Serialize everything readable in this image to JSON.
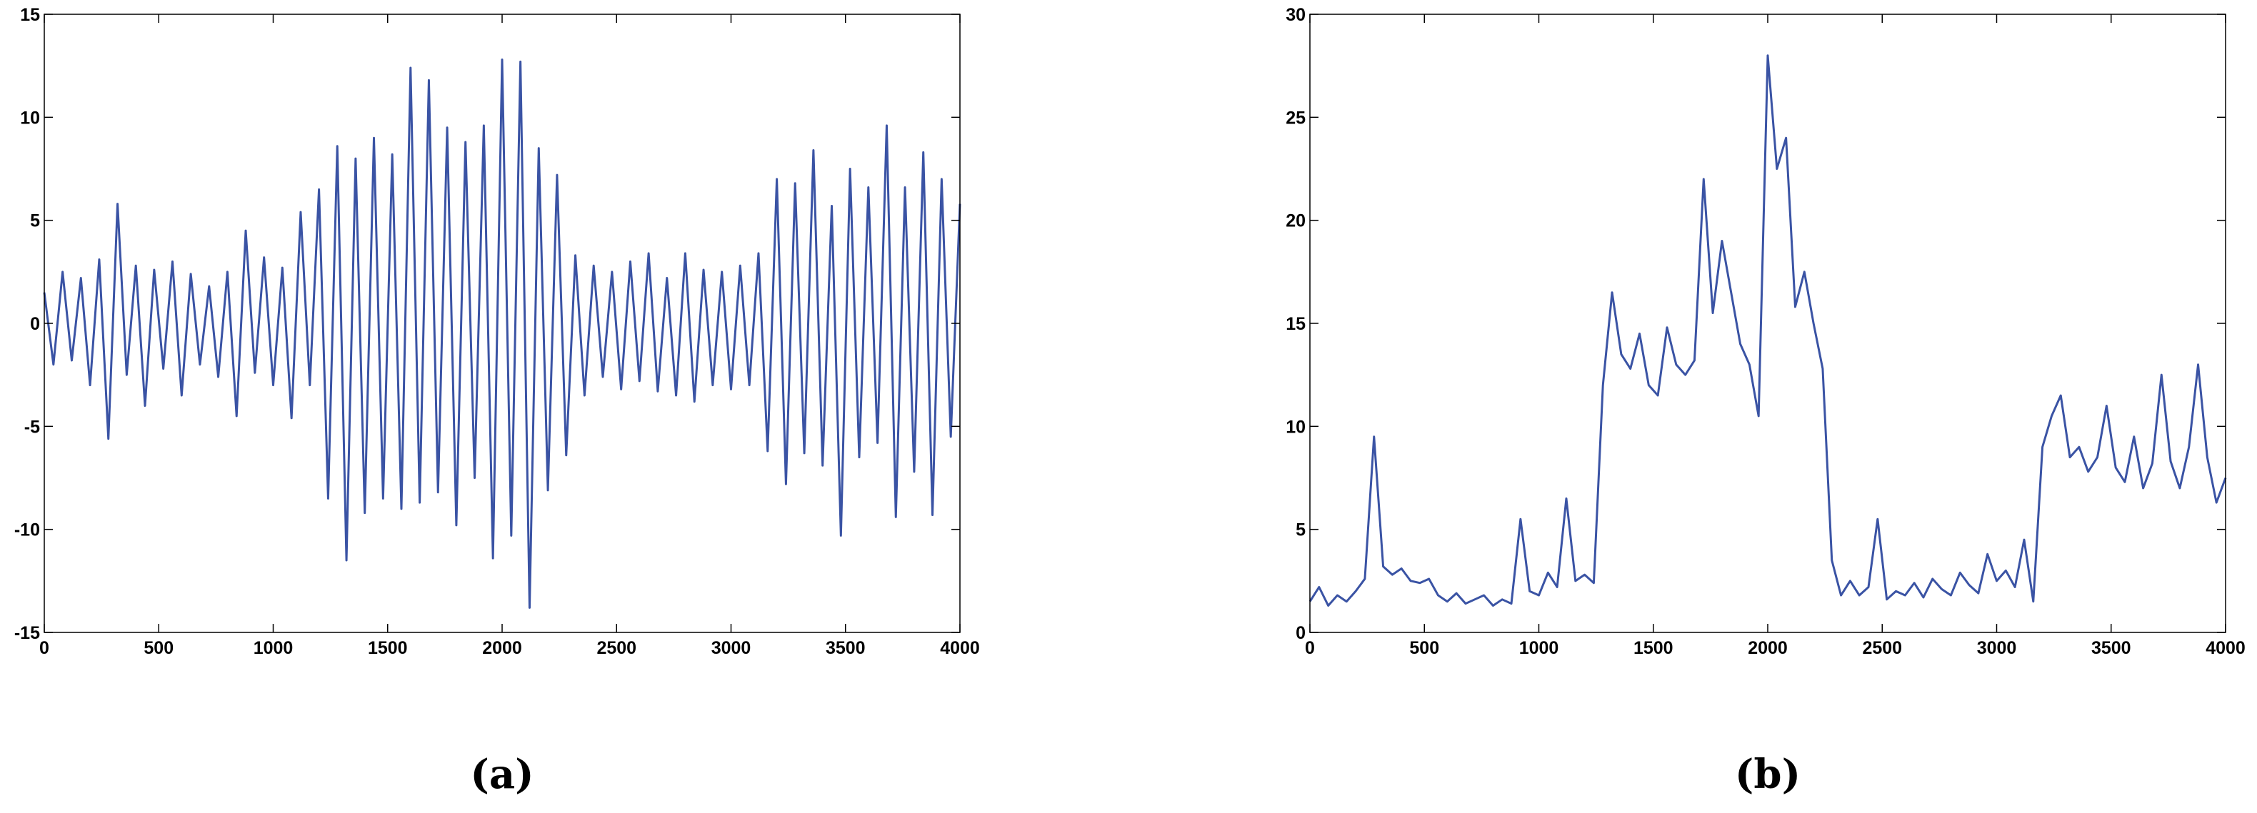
{
  "chart_data": [
    {
      "type": "line",
      "caption": "(a)",
      "x": [
        0,
        40,
        80,
        120,
        160,
        200,
        240,
        280,
        320,
        360,
        400,
        440,
        480,
        520,
        560,
        600,
        640,
        680,
        720,
        760,
        800,
        840,
        880,
        920,
        960,
        1000,
        1040,
        1080,
        1120,
        1160,
        1200,
        1240,
        1280,
        1320,
        1360,
        1400,
        1440,
        1480,
        1520,
        1560,
        1600,
        1640,
        1680,
        1720,
        1760,
        1800,
        1840,
        1880,
        1920,
        1960,
        2000,
        2040,
        2080,
        2120,
        2160,
        2200,
        2240,
        2280,
        2320,
        2360,
        2400,
        2440,
        2480,
        2520,
        2560,
        2600,
        2640,
        2680,
        2720,
        2760,
        2800,
        2840,
        2880,
        2920,
        2960,
        3000,
        3040,
        3080,
        3120,
        3160,
        3200,
        3240,
        3280,
        3320,
        3360,
        3400,
        3440,
        3480,
        3520,
        3560,
        3600,
        3640,
        3680,
        3720,
        3760,
        3800,
        3840,
        3880,
        3920,
        3960,
        4000
      ],
      "series": [
        {
          "color": "#3a53a4",
          "values": [
            1.5,
            -2,
            2.5,
            -1.8,
            2.2,
            -3,
            3.1,
            -5.6,
            5.8,
            -2.5,
            2.8,
            -4,
            2.6,
            -2.2,
            3,
            -3.5,
            2.4,
            -2,
            1.8,
            -2.6,
            2.5,
            -4.5,
            4.5,
            -2.4,
            3.2,
            -3,
            2.7,
            -4.6,
            5.4,
            -3,
            6.5,
            -8.5,
            8.6,
            -11.5,
            8,
            -9.2,
            9,
            -8.5,
            8.2,
            -9,
            12.4,
            -8.7,
            11.8,
            -8.2,
            9.5,
            -9.8,
            8.8,
            -7.5,
            9.6,
            -11.4,
            12.8,
            -10.3,
            12.7,
            -13.8,
            8.5,
            -8.1,
            7.2,
            -6.4,
            3.3,
            -3.5,
            2.8,
            -2.6,
            2.5,
            -3.2,
            3,
            -2.8,
            3.4,
            -3.3,
            2.2,
            -3.5,
            3.4,
            -3.8,
            2.6,
            -3,
            2.5,
            -3.2,
            2.8,
            -3,
            3.4,
            -6.2,
            7,
            -7.8,
            6.8,
            -6.3,
            8.4,
            -6.9,
            5.7,
            -10.3,
            7.5,
            -6.5,
            6.6,
            -5.8,
            9.6,
            -9.4,
            6.6,
            -7.2,
            8.3,
            -9.3,
            7,
            -5.5,
            5.8
          ]
        }
      ],
      "xlim": [
        0,
        4000
      ],
      "xticks": [
        0,
        500,
        1000,
        1500,
        2000,
        2500,
        3000,
        3500,
        4000
      ],
      "ylim": [
        -15,
        15
      ],
      "yticks": [
        -15,
        -10,
        -5,
        0,
        5,
        10,
        15
      ]
    },
    {
      "type": "line",
      "caption": "(b)",
      "x": [
        0,
        40,
        80,
        120,
        160,
        200,
        240,
        280,
        320,
        360,
        400,
        440,
        480,
        520,
        560,
        600,
        640,
        680,
        720,
        760,
        800,
        840,
        880,
        920,
        960,
        1000,
        1040,
        1080,
        1120,
        1160,
        1200,
        1240,
        1280,
        1320,
        1360,
        1400,
        1440,
        1480,
        1520,
        1560,
        1600,
        1640,
        1680,
        1720,
        1760,
        1800,
        1840,
        1880,
        1920,
        1960,
        2000,
        2040,
        2080,
        2120,
        2160,
        2200,
        2240,
        2280,
        2320,
        2360,
        2400,
        2440,
        2480,
        2520,
        2560,
        2600,
        2640,
        2680,
        2720,
        2760,
        2800,
        2840,
        2880,
        2920,
        2960,
        3000,
        3040,
        3080,
        3120,
        3160,
        3200,
        3240,
        3280,
        3320,
        3360,
        3400,
        3440,
        3480,
        3520,
        3560,
        3600,
        3640,
        3680,
        3720,
        3760,
        3800,
        3840,
        3880,
        3920,
        3960,
        4000
      ],
      "series": [
        {
          "color": "#3a53a4",
          "values": [
            1.5,
            2.2,
            1.3,
            1.8,
            1.5,
            2,
            2.6,
            9.5,
            3.2,
            2.8,
            3.1,
            2.5,
            2.4,
            2.6,
            1.8,
            1.5,
            1.9,
            1.4,
            1.6,
            1.8,
            1.3,
            1.6,
            1.4,
            5.5,
            2,
            1.8,
            2.9,
            2.2,
            6.5,
            2.5,
            2.8,
            2.4,
            12,
            16.5,
            13.5,
            12.8,
            14.5,
            12,
            11.5,
            14.8,
            13,
            12.5,
            13.2,
            22,
            15.5,
            19,
            16.5,
            14,
            13,
            10.5,
            28,
            22.5,
            24,
            15.8,
            17.5,
            15,
            12.8,
            3.5,
            1.8,
            2.5,
            1.8,
            2.2,
            5.5,
            1.6,
            2,
            1.8,
            2.4,
            1.7,
            2.6,
            2.1,
            1.8,
            2.9,
            2.3,
            1.9,
            3.8,
            2.5,
            3,
            2.2,
            4.5,
            1.5,
            9,
            10.5,
            11.5,
            8.5,
            9,
            7.8,
            8.5,
            11,
            8,
            7.3,
            9.5,
            7,
            8.2,
            12.5,
            8.3,
            7,
            9,
            13,
            8.5,
            6.3,
            7.5
          ]
        }
      ],
      "xlim": [
        0,
        4000
      ],
      "xticks": [
        0,
        500,
        1000,
        1500,
        2000,
        2500,
        3000,
        3500,
        4000
      ],
      "ylim": [
        0,
        30
      ],
      "yticks": [
        0,
        5,
        10,
        15,
        20,
        25,
        30
      ]
    }
  ]
}
